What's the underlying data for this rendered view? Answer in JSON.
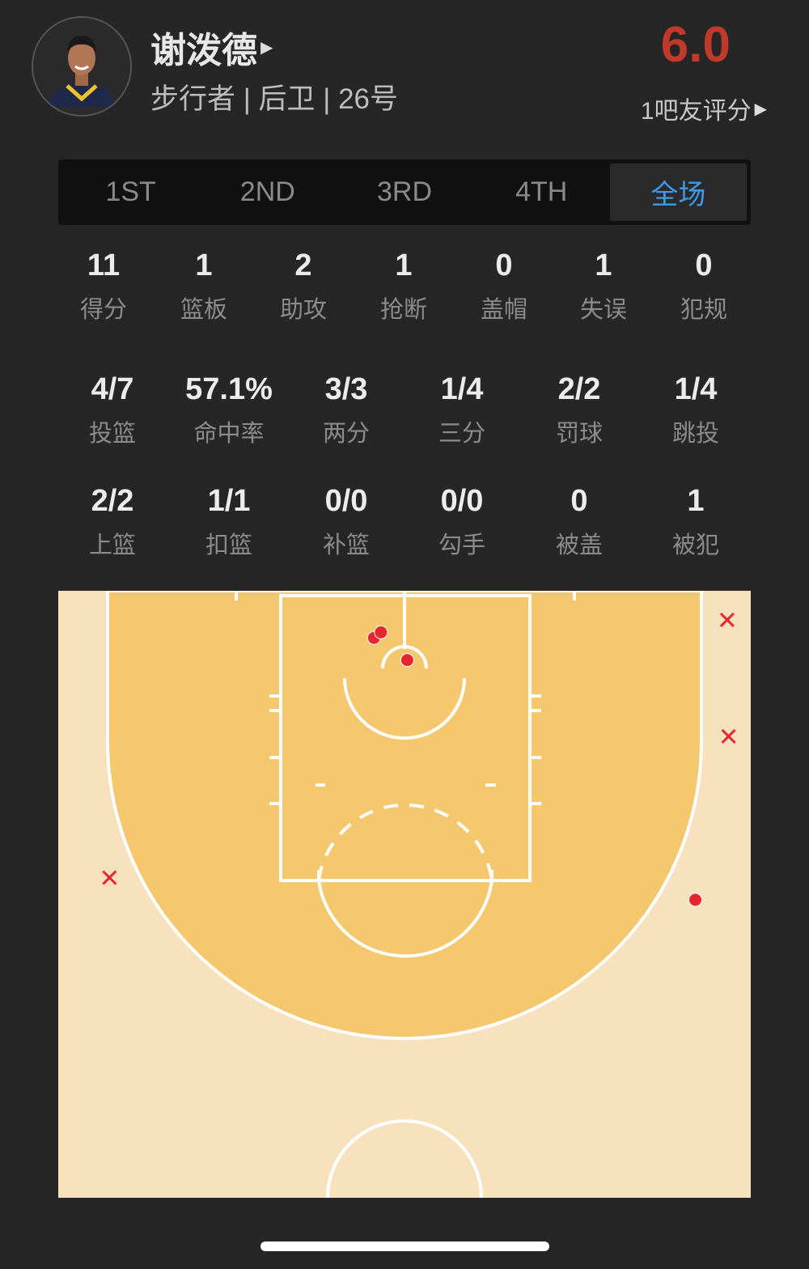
{
  "player": {
    "name": "谢泼德",
    "subtitle": "步行者 | 后卫 | 26号",
    "rating_score": "6.0",
    "rating_label": "1吧友评分",
    "rating_color": "#c0392b"
  },
  "tabs": [
    {
      "label": "1ST",
      "active": false
    },
    {
      "label": "2ND",
      "active": false
    },
    {
      "label": "3RD",
      "active": false
    },
    {
      "label": "4TH",
      "active": false
    },
    {
      "label": "全场",
      "active": true
    }
  ],
  "stats_row1": [
    {
      "value": "11",
      "label": "得分"
    },
    {
      "value": "1",
      "label": "篮板"
    },
    {
      "value": "2",
      "label": "助攻"
    },
    {
      "value": "1",
      "label": "抢断"
    },
    {
      "value": "0",
      "label": "盖帽"
    },
    {
      "value": "1",
      "label": "失误"
    },
    {
      "value": "0",
      "label": "犯规"
    }
  ],
  "stats_row2": [
    {
      "value": "4/7",
      "label": "投篮"
    },
    {
      "value": "57.1%",
      "label": "命中率"
    },
    {
      "value": "3/3",
      "label": "两分"
    },
    {
      "value": "1/4",
      "label": "三分"
    },
    {
      "value": "2/2",
      "label": "罚球"
    },
    {
      "value": "1/4",
      "label": "跳投"
    }
  ],
  "stats_row3": [
    {
      "value": "2/2",
      "label": "上篮"
    },
    {
      "value": "1/1",
      "label": "扣篮"
    },
    {
      "value": "0/0",
      "label": "补篮"
    },
    {
      "value": "0/0",
      "label": "勾手"
    },
    {
      "value": "0",
      "label": "被盖"
    },
    {
      "value": "1",
      "label": "被犯"
    }
  ],
  "shot_chart": {
    "units": "feet (x from court center, y from baseline)",
    "colors": {
      "made": "#e8262f",
      "miss": "#e8262f",
      "paint_area": "#f6c86e",
      "outside": "#f8e1bd",
      "lines": "#ffffff"
    },
    "shots": [
      {
        "result": "made",
        "x": -2.2,
        "y": 3.4
      },
      {
        "result": "made",
        "x": -1.7,
        "y": 3.0
      },
      {
        "result": "made",
        "x": 0.2,
        "y": 5.0
      },
      {
        "result": "made",
        "x": 21.0,
        "y": 22.3
      },
      {
        "result": "miss",
        "x": 23.3,
        "y": 2.1
      },
      {
        "result": "miss",
        "x": 23.4,
        "y": 10.5
      },
      {
        "result": "miss",
        "x": -21.3,
        "y": 20.7
      }
    ]
  }
}
